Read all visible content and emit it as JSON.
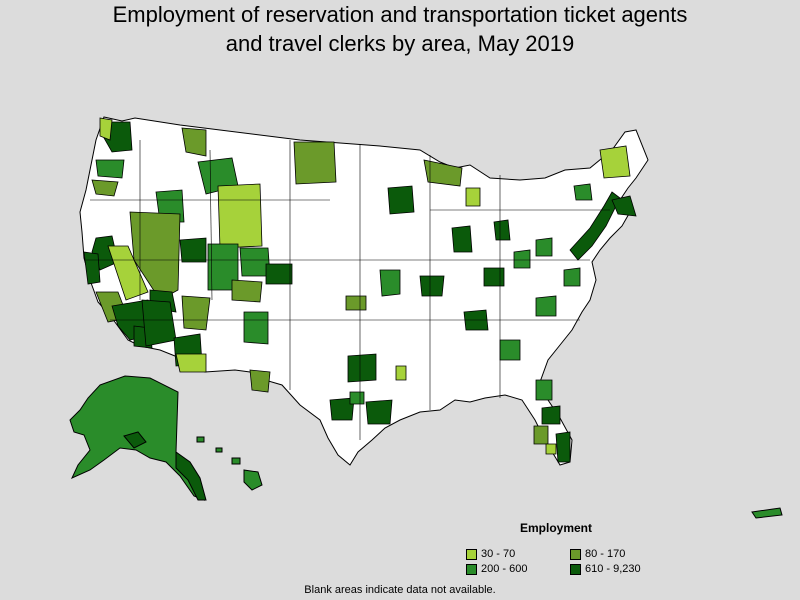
{
  "title": {
    "line1": "Employment of reservation and transportation ticket agents",
    "line2": "and travel clerks by area, May 2019"
  },
  "legend": {
    "title": "Employment",
    "items": [
      {
        "label": "30 - 70",
        "color": "#a6d23a"
      },
      {
        "label": "80 - 170",
        "color": "#6b9a2a"
      },
      {
        "label": "200 - 600",
        "color": "#2a8c2a"
      },
      {
        "label": "610 - 9,230",
        "color": "#0b5a0b"
      }
    ]
  },
  "footnote": "Blank areas indicate data not available.",
  "colors": {
    "background": "#dcdcdc",
    "land": "#ffffff",
    "border": "#000000",
    "c1": "#a6d23a",
    "c2": "#6b9a2a",
    "c3": "#2a8c2a",
    "c4": "#0b5a0b"
  }
}
